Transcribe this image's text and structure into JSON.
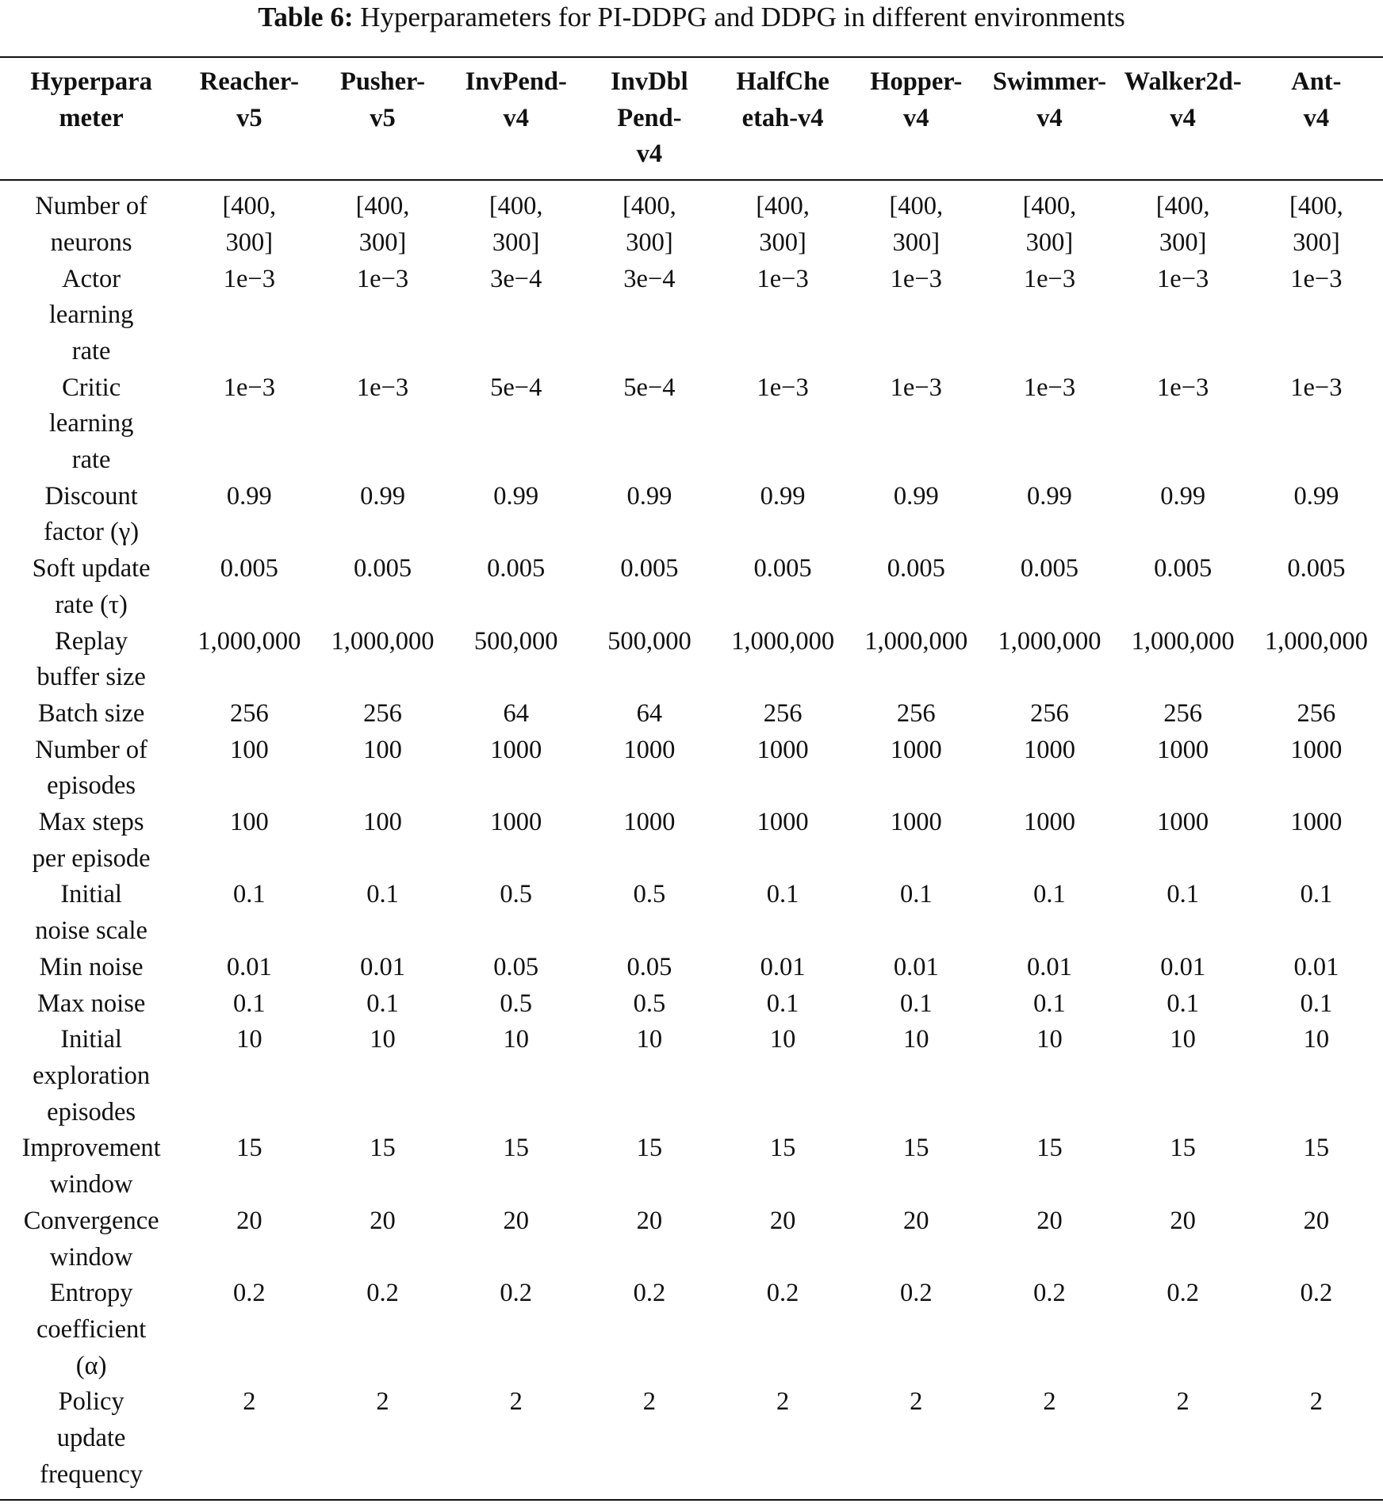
{
  "caption": {
    "label": "Table 6:",
    "text": " Hyperparameters for PI-DDPG and DDPG in different environments"
  },
  "headers": [
    "Hyperpara\nmeter",
    "Reacher-\nv5",
    "Pusher-\nv5",
    "InvPend-\nv4",
    "InvDbl\nPend-\nv4",
    "HalfChe\netah-v4",
    "Hopper-\nv4",
    "Swimmer-\nv4",
    "Walker2d-\nv4",
    "Ant-\nv4"
  ],
  "rows": [
    [
      "Number of\nneurons",
      "[400,\n300]",
      "[400,\n300]",
      "[400,\n300]",
      "[400,\n300]",
      "[400,\n300]",
      "[400,\n300]",
      "[400,\n300]",
      "[400,\n300]",
      "[400,\n300]"
    ],
    [
      "Actor\nlearning\nrate",
      "1e−3",
      "1e−3",
      "3e−4",
      "3e−4",
      "1e−3",
      "1e−3",
      "1e−3",
      "1e−3",
      "1e−3"
    ],
    [
      "Critic\nlearning\nrate",
      "1e−3",
      "1e−3",
      "5e−4",
      "5e−4",
      "1e−3",
      "1e−3",
      "1e−3",
      "1e−3",
      "1e−3"
    ],
    [
      "Discount\nfactor (γ)",
      "0.99",
      "0.99",
      "0.99",
      "0.99",
      "0.99",
      "0.99",
      "0.99",
      "0.99",
      "0.99"
    ],
    [
      "Soft update\nrate (τ)",
      "0.005",
      "0.005",
      "0.005",
      "0.005",
      "0.005",
      "0.005",
      "0.005",
      "0.005",
      "0.005"
    ],
    [
      "Replay\nbuffer size",
      "1,000,000",
      "1,000,000",
      "500,000",
      "500,000",
      "1,000,000",
      "1,000,000",
      "1,000,000",
      "1,000,000",
      "1,000,000"
    ],
    [
      "Batch size",
      "256",
      "256",
      "64",
      "64",
      "256",
      "256",
      "256",
      "256",
      "256"
    ],
    [
      "Number of\nepisodes",
      "100",
      "100",
      "1000",
      "1000",
      "1000",
      "1000",
      "1000",
      "1000",
      "1000"
    ],
    [
      "Max steps\nper episode",
      "100",
      "100",
      "1000",
      "1000",
      "1000",
      "1000",
      "1000",
      "1000",
      "1000"
    ],
    [
      "Initial\nnoise scale",
      "0.1",
      "0.1",
      "0.5",
      "0.5",
      "0.1",
      "0.1",
      "0.1",
      "0.1",
      "0.1"
    ],
    [
      "Min noise",
      "0.01",
      "0.01",
      "0.05",
      "0.05",
      "0.01",
      "0.01",
      "0.01",
      "0.01",
      "0.01"
    ],
    [
      "Max noise",
      "0.1",
      "0.1",
      "0.5",
      "0.5",
      "0.1",
      "0.1",
      "0.1",
      "0.1",
      "0.1"
    ],
    [
      "Initial\nexploration\nepisodes",
      "10",
      "10",
      "10",
      "10",
      "10",
      "10",
      "10",
      "10",
      "10"
    ],
    [
      "Improvement\nwindow",
      "15",
      "15",
      "15",
      "15",
      "15",
      "15",
      "15",
      "15",
      "15"
    ],
    [
      "Convergence\nwindow",
      "20",
      "20",
      "20",
      "20",
      "20",
      "20",
      "20",
      "20",
      "20"
    ],
    [
      "Entropy\ncoefficient\n(α)",
      "0.2",
      "0.2",
      "0.2",
      "0.2",
      "0.2",
      "0.2",
      "0.2",
      "0.2",
      "0.2"
    ],
    [
      "Policy\nupdate\nfrequency",
      "2",
      "2",
      "2",
      "2",
      "2",
      "2",
      "2",
      "2",
      "2"
    ]
  ]
}
